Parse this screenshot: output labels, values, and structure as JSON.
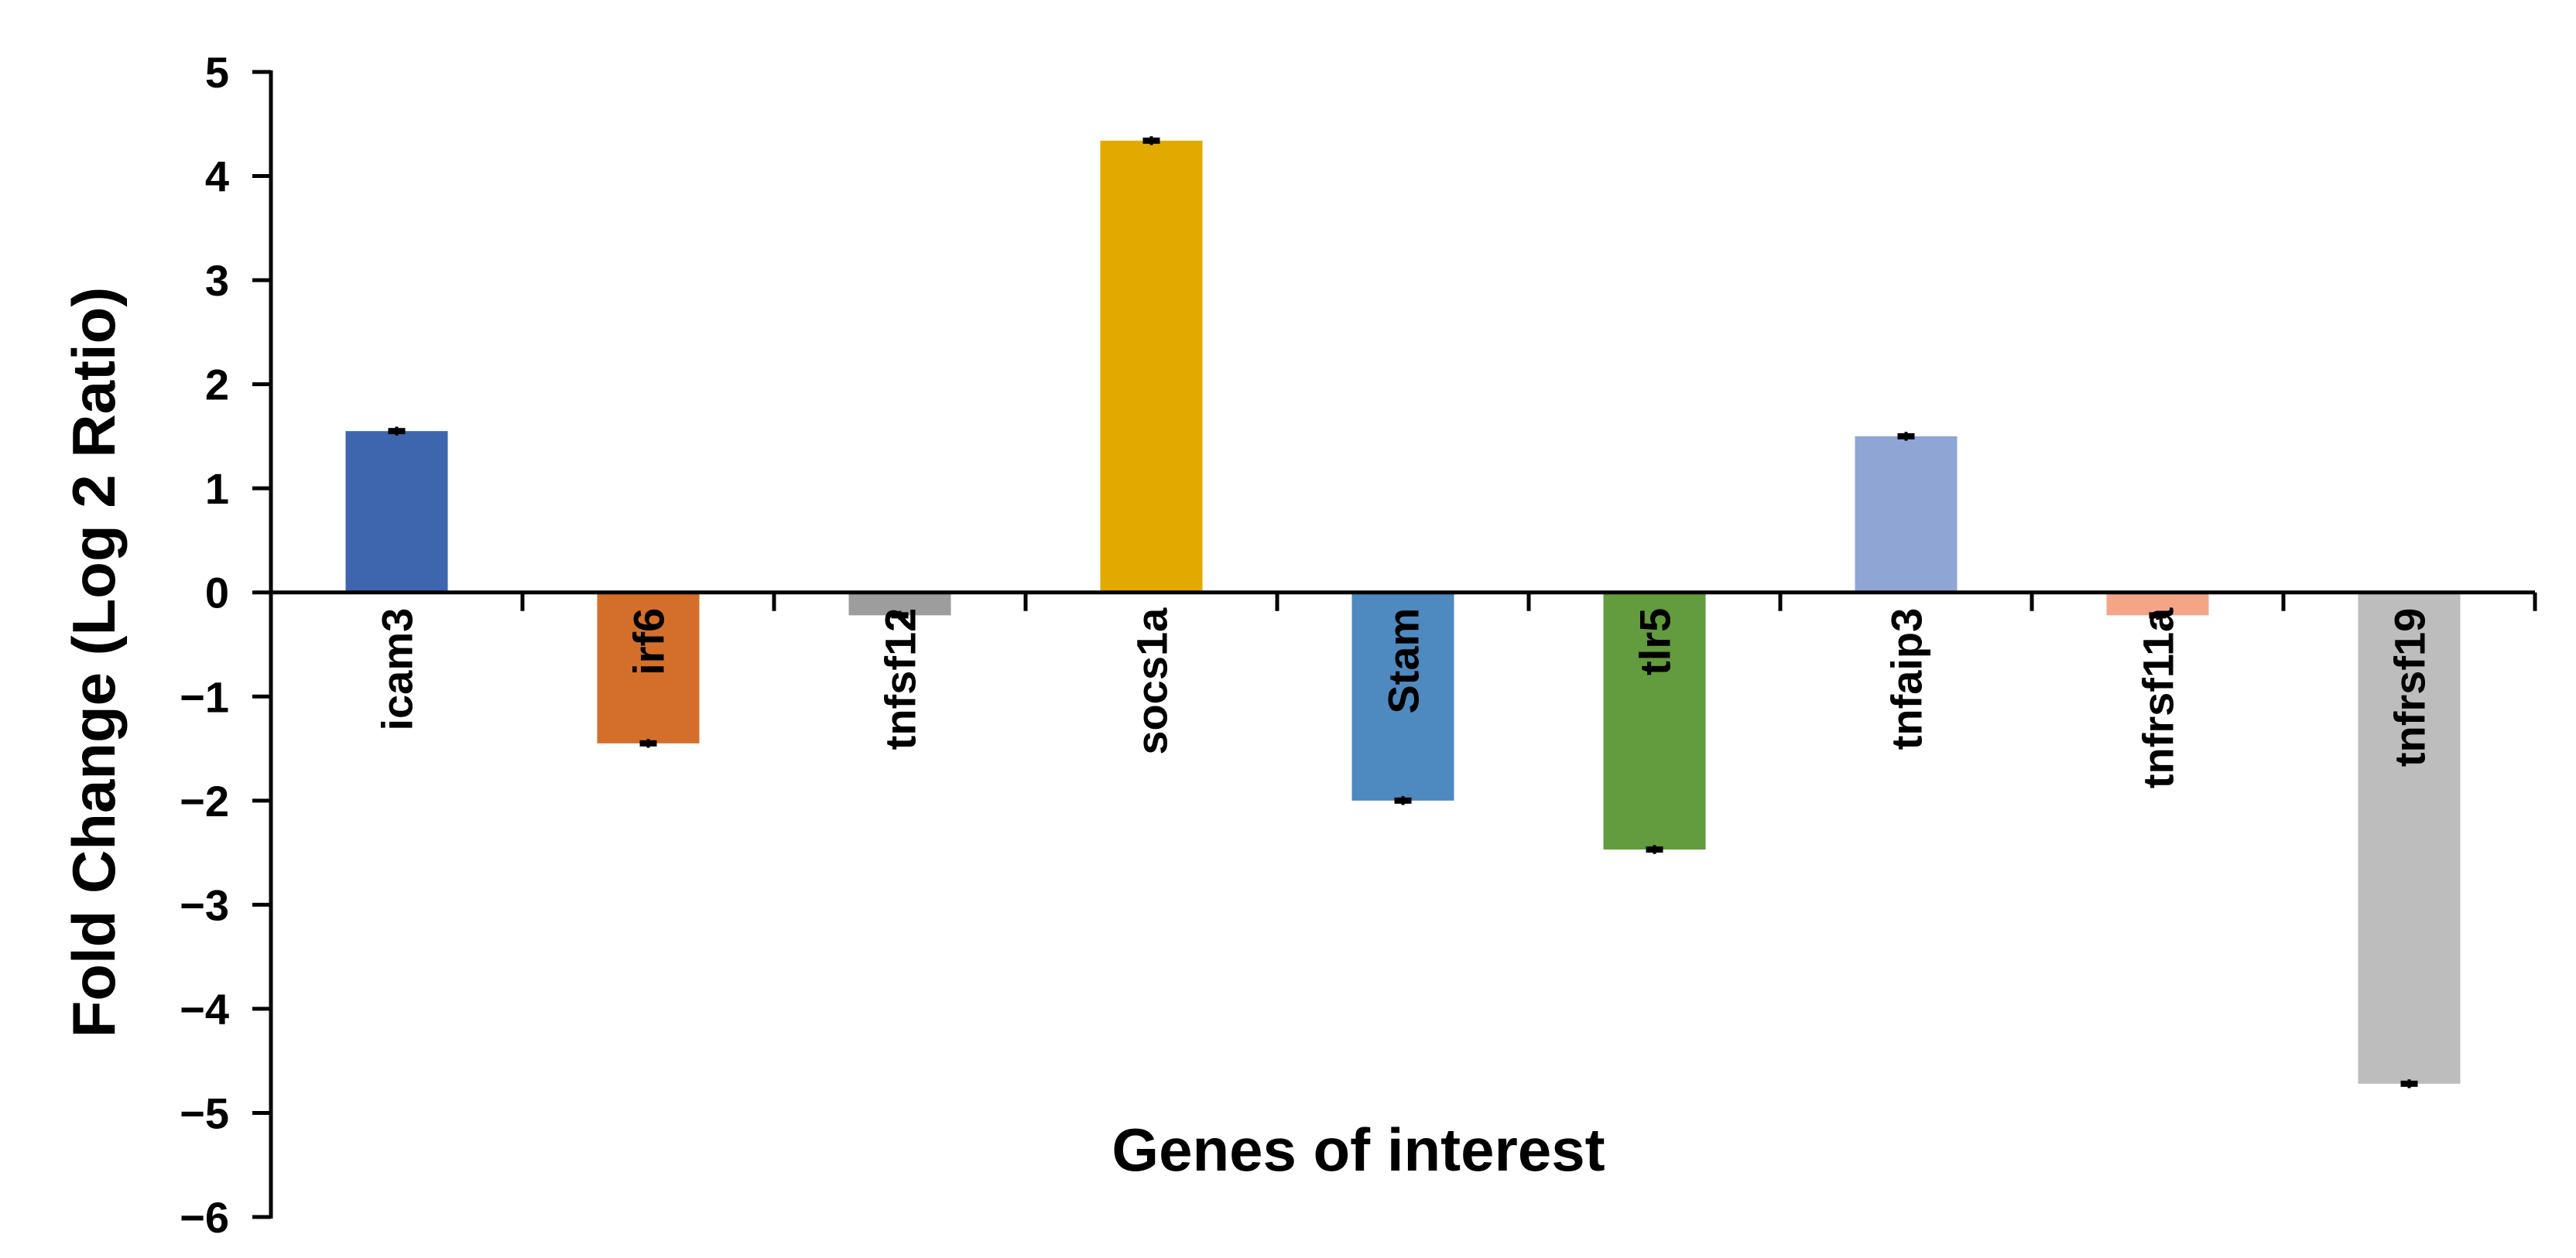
{
  "chart_data": {
    "type": "bar",
    "title": "",
    "xlabel": "Genes of interest",
    "ylabel": "Fold Change (Log 2 Ratio)",
    "ylim": [
      -6,
      5
    ],
    "yticks": [
      "5",
      "4",
      "3",
      "2",
      "1",
      "0",
      "−1",
      "−2",
      "−3",
      "−4",
      "−5",
      "−6"
    ],
    "categories": [
      "icam3",
      "irf6",
      "tnfsf12",
      "socs1a",
      "Stam",
      "tlr5",
      "tnfaip3",
      "tnfrsf11a",
      "tnfrsf19"
    ],
    "values": [
      1.55,
      -1.45,
      -0.22,
      4.34,
      -2.0,
      -2.47,
      1.5,
      -0.22,
      -4.72
    ],
    "errors": [
      0.02,
      0.02,
      0.02,
      0.02,
      0.02,
      0.02,
      0.02,
      0.02,
      0.02
    ],
    "colors": [
      "#3d66ae",
      "#d46f2b",
      "#9d9d9d",
      "#e2aa00",
      "#4e89c0",
      "#629c3e",
      "#8fa5d4",
      "#f4a588",
      "#bdbdbd"
    ],
    "grid": false,
    "legend": "none"
  }
}
